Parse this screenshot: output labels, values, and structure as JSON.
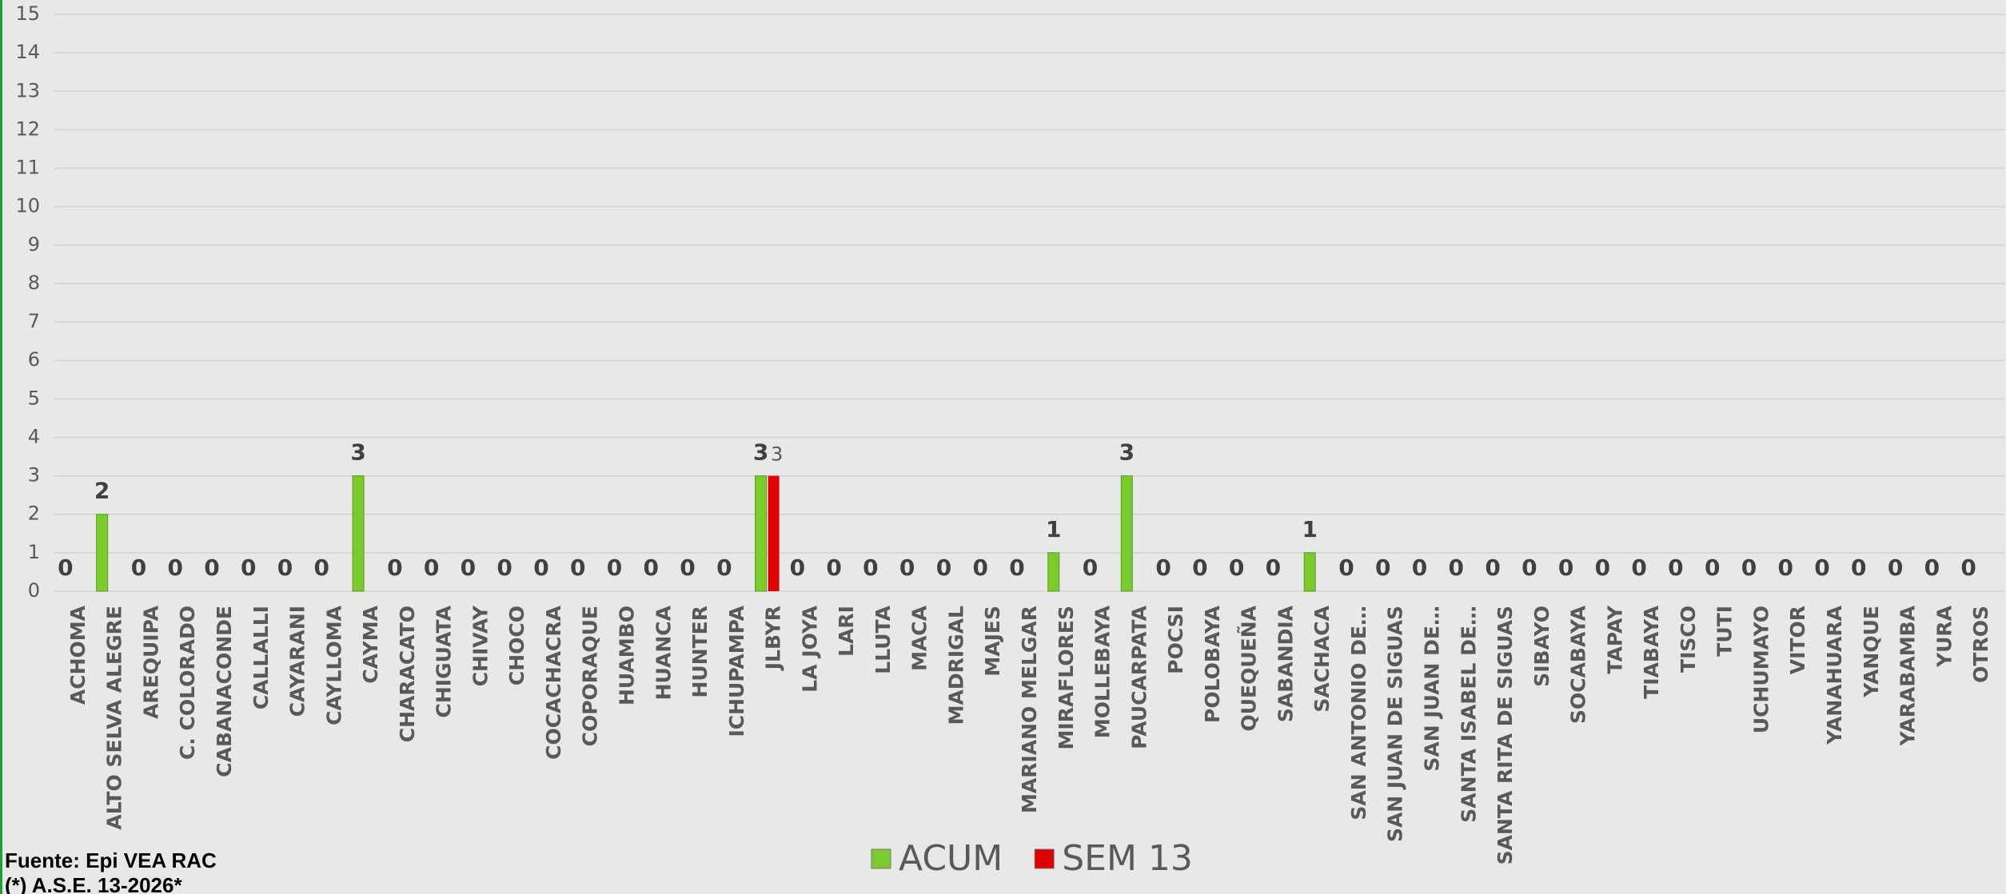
{
  "chart_data": {
    "type": "bar",
    "categories": [
      "ACHOMA",
      "ALTO SELVA ALEGRE",
      "AREQUIPA",
      "C. COLORADO",
      "CABANACONDE",
      "CALLALLI",
      "CAYARANI",
      "CAYLLOMA",
      "CAYMA",
      "CHARACATO",
      "CHIGUATA",
      "CHIVAY",
      "CHOCO",
      "COCACHACRA",
      "COPORAQUE",
      "HUAMBO",
      "HUANCA",
      "HUNTER",
      "ICHUPAMPA",
      "JLBYR",
      "LA JOYA",
      "LARI",
      "LLUTA",
      "MACA",
      "MADRIGAL",
      "MAJES",
      "MARIANO MELGAR",
      "MIRAFLORES",
      "MOLLEBAYA",
      "PAUCARPATA",
      "POCSI",
      "POLOBAYA",
      "QUEQUEÑA",
      "SABANDIA",
      "SACHACA",
      "SAN ANTONIO DE…",
      "SAN JUAN DE SIGUAS",
      "SAN JUAN DE…",
      "SANTA ISABEL DE…",
      "SANTA RITA DE SIGUAS",
      "SIBAYO",
      "SOCABAYA",
      "TAPAY",
      "TIABAYA",
      "TISCO",
      "TUTI",
      "UCHUMAYO",
      "VITOR",
      "YANAHUARA",
      "YANQUE",
      "YARABAMBA",
      "YURA",
      "OTROS"
    ],
    "series": [
      {
        "name": "ACUM",
        "color": "#7ccb2e",
        "values": [
          0,
          2,
          0,
          0,
          0,
          0,
          0,
          0,
          3,
          0,
          0,
          0,
          0,
          0,
          0,
          0,
          0,
          0,
          0,
          3,
          0,
          0,
          0,
          0,
          0,
          0,
          0,
          1,
          0,
          3,
          0,
          0,
          0,
          0,
          1,
          0,
          0,
          0,
          0,
          0,
          0,
          0,
          0,
          0,
          0,
          0,
          0,
          0,
          0,
          0,
          0,
          0,
          0
        ]
      },
      {
        "name": "SEM 13",
        "color": "#e00000",
        "values": [
          null,
          null,
          null,
          null,
          null,
          null,
          null,
          null,
          null,
          null,
          null,
          null,
          null,
          null,
          null,
          null,
          null,
          null,
          null,
          3,
          null,
          null,
          null,
          null,
          null,
          null,
          null,
          null,
          null,
          null,
          null,
          null,
          null,
          null,
          null,
          null,
          null,
          null,
          null,
          null,
          null,
          null,
          null,
          null,
          null,
          null,
          null,
          null,
          null,
          null,
          null,
          null,
          null
        ]
      }
    ],
    "ylim": [
      0,
      15
    ],
    "yticks": [
      0,
      1,
      2,
      3,
      4,
      5,
      6,
      7,
      8,
      9,
      10,
      11,
      12,
      13,
      14,
      15
    ],
    "grid": true,
    "legend": "bottom",
    "footnotes": [
      "Fuente: Epi VEA RAC",
      "(*) A.S.E. 13-2026*"
    ]
  }
}
